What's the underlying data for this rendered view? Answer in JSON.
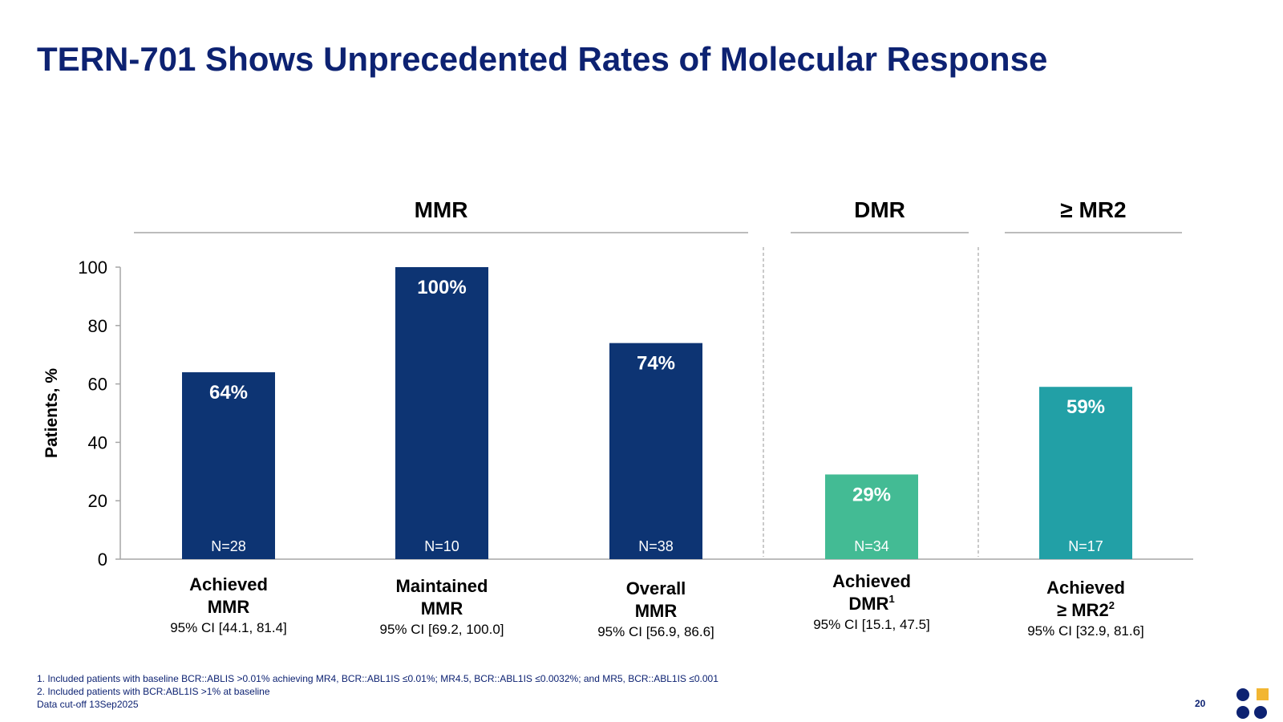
{
  "slide": {
    "title": "TERN-701 Shows Unprecedented Rates of Molecular Response",
    "page_number": "20",
    "footnotes": [
      "1. Included patients with baseline BCR::ABLIS >0.01% achieving MR4, BCR::ABL1IS ≤0.01%; MR4.5, BCR::ABL1IS ≤0.0032%; and MR5, BCR::ABL1IS ≤0.001",
      "2. Included patients with BCR:ABL1IS >1% at baseline",
      "Data cut-off 13Sep2025"
    ]
  },
  "chart_data": {
    "type": "bar",
    "ylabel": "Patients, %",
    "ylim": [
      0,
      100
    ],
    "yticks": [
      0,
      20,
      40,
      60,
      80,
      100
    ],
    "groups": [
      {
        "label": "MMR",
        "categories": [
          0,
          1,
          2
        ]
      },
      {
        "label": "DMR",
        "categories": [
          3
        ]
      },
      {
        "label": "≥ MR2",
        "categories": [
          4
        ]
      }
    ],
    "bars": [
      {
        "label_line1": "Achieved",
        "label_line2": "MMR",
        "sup": "",
        "value": 64,
        "value_label": "64%",
        "n_label": "N=28",
        "ci": "95% CI [44.1, 81.4]",
        "color": "#0d3473"
      },
      {
        "label_line1": "Maintained",
        "label_line2": "MMR",
        "sup": "",
        "value": 100,
        "value_label": "100%",
        "n_label": "N=10",
        "ci": "95% CI [69.2, 100.0]",
        "color": "#0d3473"
      },
      {
        "label_line1": "Overall",
        "label_line2": "MMR",
        "sup": "",
        "value": 74,
        "value_label": "74%",
        "n_label": "N=38",
        "ci": "95% CI [56.9, 86.6]",
        "color": "#0d3473"
      },
      {
        "label_line1": "Achieved",
        "label_line2": "DMR",
        "sup": "1",
        "value": 29,
        "value_label": "29%",
        "n_label": "N=34",
        "ci": "95% CI [15.1, 47.5]",
        "color": "#43bb94"
      },
      {
        "label_line1": "Achieved",
        "label_line2": "≥ MR2",
        "sup": "2",
        "value": 59,
        "value_label": "59%",
        "n_label": "N=17",
        "ci": "95% CI [32.9, 81.6]",
        "color": "#22a0a6"
      }
    ],
    "grid": false,
    "legend": "none"
  },
  "colors": {
    "title": "#0d2272",
    "logo_navy": "#0d2272",
    "logo_gold": "#f2b632"
  },
  "icons": {
    "logo": "company-logo-icon"
  }
}
